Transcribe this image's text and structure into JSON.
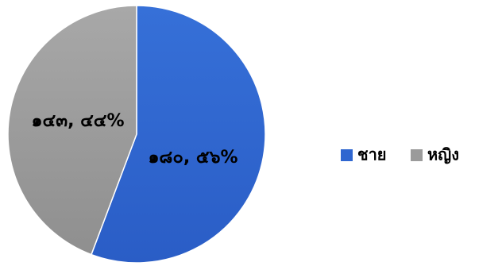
{
  "chart_data": {
    "type": "pie",
    "title": "",
    "categories": [
      "ชาย",
      "หญิง"
    ],
    "values": [
      180,
      143
    ],
    "percents": [
      "56%",
      "44%"
    ],
    "data_labels": [
      "๑๘๐, ๕๖%",
      "๑๔๓, ๔๔%"
    ],
    "colors": [
      "#2f66d0",
      "#9b9b9b"
    ],
    "legend": {
      "placement": "right",
      "entries": [
        "ชาย",
        "หญิง"
      ]
    }
  }
}
